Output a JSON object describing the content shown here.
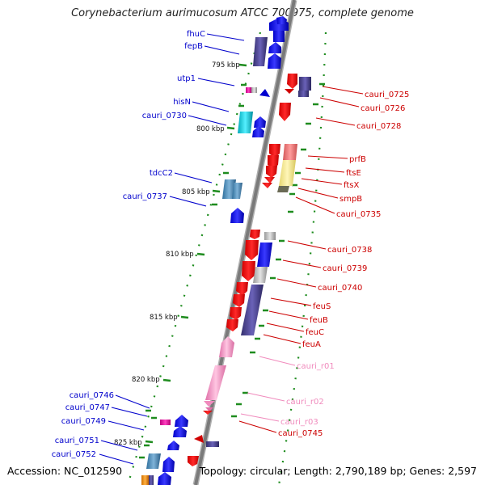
{
  "title": "Corynebacterium aurimucosum ATCC 700975, complete genome",
  "accession": "Accession: NC_012590",
  "topology": "Topology: circular; Length: 2,790,189 bp; Genes: 2,597",
  "colors": {
    "left_label": "#0000cc",
    "right_label": "#cc0000",
    "rna_label": "#f08bbd",
    "backbone": "#808080",
    "tick": "#1e8c1e"
  },
  "kbp_marks": [
    "795 kbp",
    "800 kbp",
    "805 kbp",
    "810 kbp",
    "815 kbp",
    "820 kbp",
    "825 kbp"
  ],
  "left_genes": [
    "fhuC",
    "fepB",
    "utp1",
    "hisN",
    "cauri_0730",
    "tdcC2",
    "cauri_0737",
    "cauri_0746",
    "cauri_0747",
    "cauri_0749",
    "cauri_0751",
    "cauri_0752"
  ],
  "right_genes": [
    "cauri_0725",
    "cauri_0726",
    "cauri_0728",
    "prfB",
    "ftsE",
    "ftsX",
    "smpB",
    "cauri_0735",
    "cauri_0738",
    "cauri_0739",
    "cauri_0740",
    "feuS",
    "feuB",
    "feuC",
    "feuA",
    "cauri_0745"
  ],
  "rna_genes": [
    "cauri_r01",
    "cauri_r02",
    "cauri_r03"
  ]
}
